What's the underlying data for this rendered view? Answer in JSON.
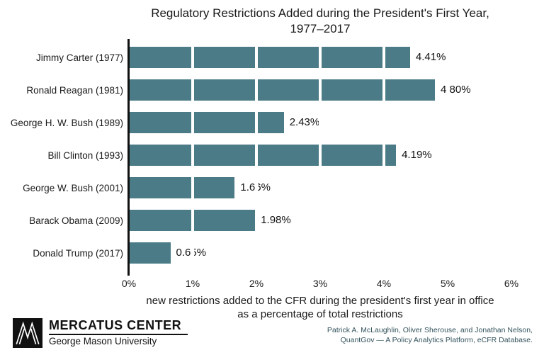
{
  "chart_data": {
    "type": "bar",
    "orientation": "horizontal",
    "title_line1": "Regulatory Restrictions Added during the President's First Year,",
    "title_line2": "1977–2017",
    "categories": [
      "Jimmy Carter (1977)",
      "Ronald Reagan (1981)",
      "George H. W. Bush (1989)",
      "Bill Clinton (1993)",
      "George W. Bush (2001)",
      "Barack Obama (2009)",
      "Donald Trump (2017)"
    ],
    "values": [
      4.41,
      4.8,
      2.43,
      4.19,
      1.66,
      1.98,
      0.65
    ],
    "value_labels": [
      "4.41%",
      "4.80%",
      "2.43%",
      "4.19%",
      "1.66%",
      "1.98%",
      "0.65%"
    ],
    "xlim": [
      0,
      6
    ],
    "x_ticks": [
      "0%",
      "1%",
      "2%",
      "3%",
      "4%",
      "5%",
      "6%"
    ],
    "xlabel_line1": "new restrictions added to the CFR during the president's first year in office",
    "xlabel_line2": "as a percentage of total restrictions",
    "bar_color": "#4a7b86",
    "gridline_color": "#ffffff",
    "axis_color": "#111111",
    "legend": "none",
    "grid": "vertical-white-over-bars"
  },
  "footer": {
    "org_name": "MERCATUS CENTER",
    "org_sub": "George Mason University",
    "attribution_line1": "Patrick A. McLaughlin, Oliver Sherouse, and Jonathan Nelson,",
    "attribution_line2": "QuantGov — A Policy Analytics Platform, eCFR Database."
  }
}
